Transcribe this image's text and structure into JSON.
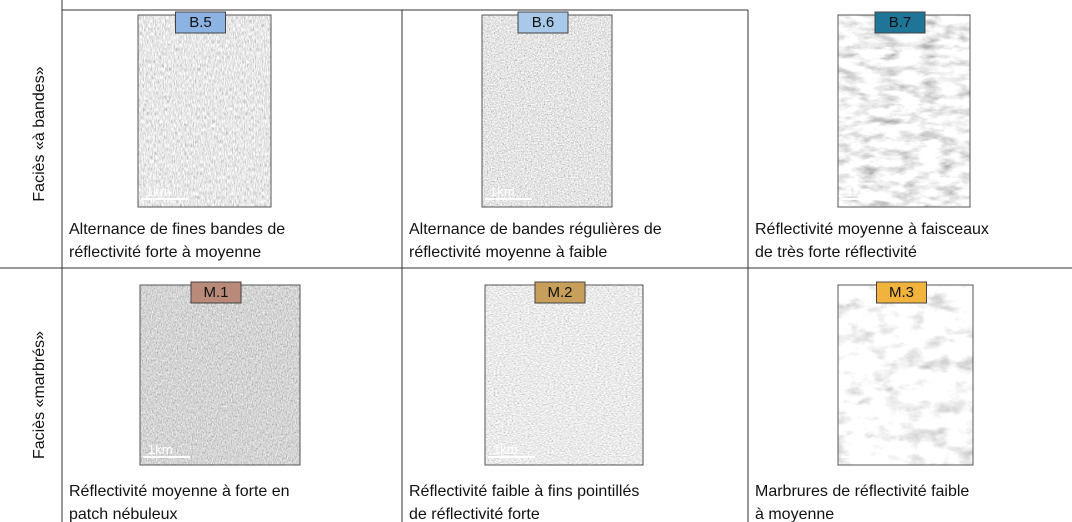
{
  "rows": [
    {
      "label": "Faciès  «à bandes»",
      "cells": [
        {
          "code": "B.5",
          "scale": "1km",
          "caption": [
            "Alternance de fines bandes de",
            "réflectivité forte à moyenne"
          ]
        },
        {
          "code": "B.6",
          "scale": "1km",
          "caption": [
            "Alternance de bandes régulières de",
            "réflectivité moyenne à faible"
          ]
        },
        {
          "code": "B.7",
          "scale": "1km",
          "caption": [
            "Réflectivité moyenne à faisceaux",
            "de très forte réflectivité"
          ]
        }
      ]
    },
    {
      "label": "Faciès  «marbrés»",
      "cells": [
        {
          "code": "M.1",
          "scale": "1km",
          "caption": [
            "Réflectivité moyenne à forte en",
            "patch nébuleux"
          ]
        },
        {
          "code": "M.2",
          "scale": "1km",
          "caption": [
            "Réflectivité faible à fins pointillés",
            "de réflectivité forte"
          ]
        },
        {
          "code": "M.3",
          "scale": "1km",
          "caption": [
            "Marbrures de réflectivité faible",
            "à moyenne"
          ]
        }
      ]
    }
  ]
}
